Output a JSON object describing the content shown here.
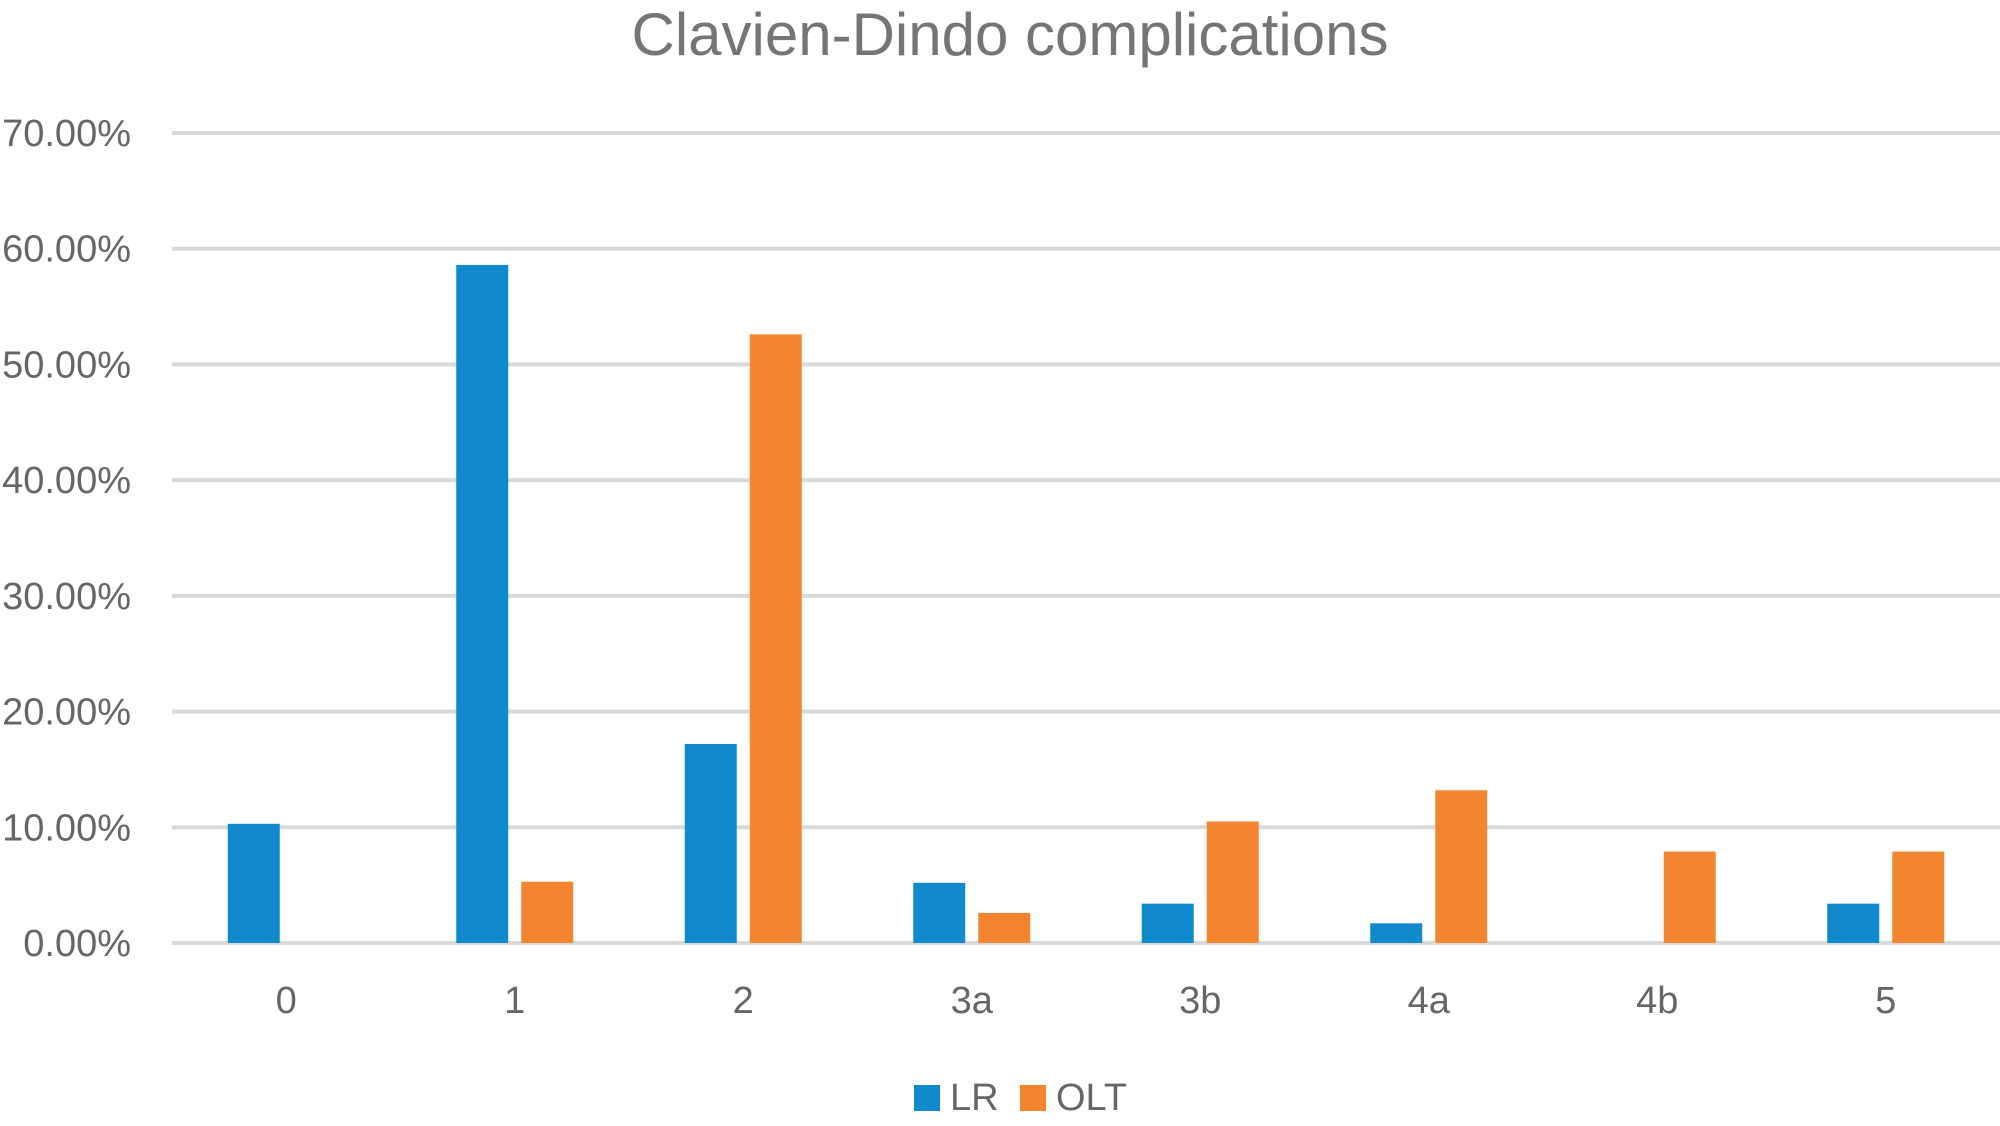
{
  "chart_data": {
    "type": "bar",
    "title": "Clavien-Dindo complications",
    "xlabel": "",
    "ylabel": "",
    "categories": [
      "0",
      "1",
      "2",
      "3a",
      "3b",
      "4a",
      "4b",
      "5"
    ],
    "series": [
      {
        "name": "LR",
        "color": "#118acd",
        "values": [
          10.3,
          58.6,
          17.2,
          5.2,
          3.4,
          1.7,
          0,
          3.4
        ]
      },
      {
        "name": "OLT",
        "color": "#f38530",
        "values": [
          0,
          5.3,
          52.6,
          2.6,
          10.5,
          13.2,
          7.9,
          7.9
        ]
      }
    ],
    "ylim": [
      0,
      70
    ],
    "yticks": [
      0,
      10,
      20,
      30,
      40,
      50,
      60,
      70
    ],
    "ytick_labels": [
      "0.00%",
      "10.00%",
      "20.00%",
      "30.00%",
      "40.00%",
      "50.00%",
      "60.00%",
      "70.00%"
    ],
    "grid": true,
    "legend": "bottom-center"
  }
}
